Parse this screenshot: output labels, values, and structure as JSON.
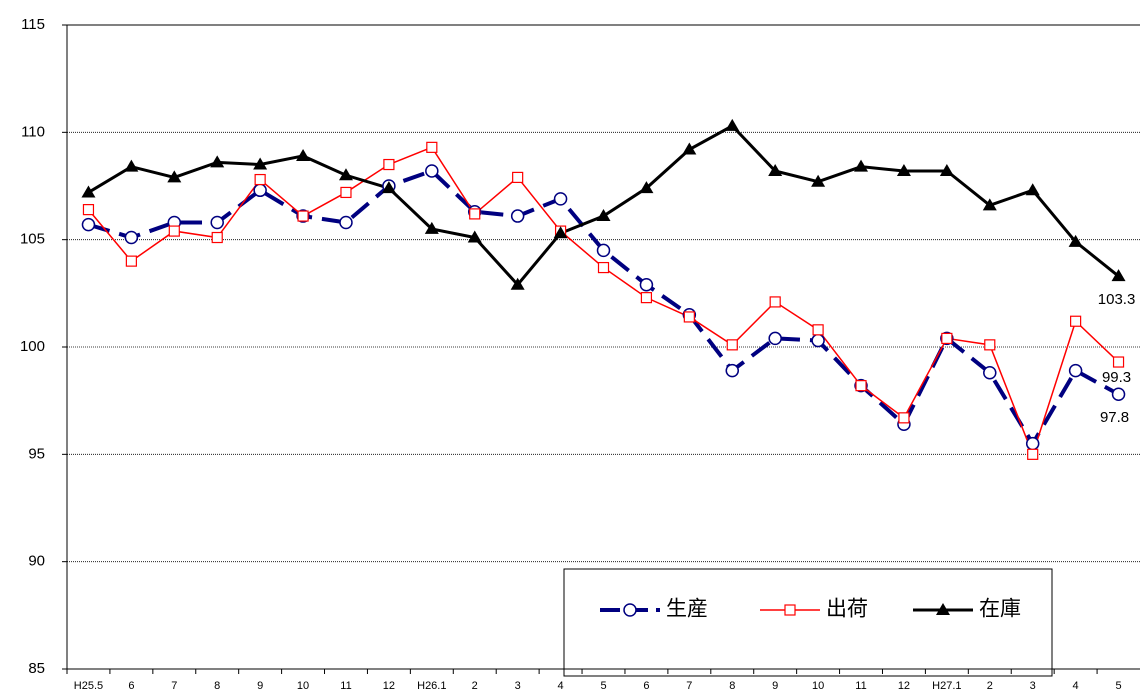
{
  "chart_data": {
    "type": "line",
    "categories": [
      "H25.5",
      "6",
      "7",
      "8",
      "9",
      "10",
      "11",
      "12",
      "H26.1",
      "2",
      "3",
      "4",
      "5",
      "6",
      "7",
      "8",
      "9",
      "10",
      "11",
      "12",
      "H27.1",
      "2",
      "3",
      "4",
      "5"
    ],
    "series": [
      {
        "name": "生産",
        "color": "#000080",
        "marker": "circle",
        "dashed": true,
        "values": [
          105.7,
          105.1,
          105.8,
          105.8,
          107.3,
          106.1,
          105.8,
          107.5,
          108.2,
          106.3,
          106.1,
          106.9,
          104.5,
          102.9,
          101.5,
          98.9,
          100.4,
          100.3,
          98.2,
          96.4,
          100.4,
          98.8,
          95.5,
          98.9,
          97.8
        ]
      },
      {
        "name": "出荷",
        "color": "#ff0000",
        "marker": "square",
        "dashed": false,
        "values": [
          106.4,
          104.0,
          105.4,
          105.1,
          107.8,
          106.1,
          107.2,
          108.5,
          109.3,
          106.2,
          107.9,
          105.4,
          103.7,
          102.3,
          101.4,
          100.1,
          102.1,
          100.8,
          98.2,
          96.7,
          100.4,
          100.1,
          95.0,
          101.2,
          99.3
        ]
      },
      {
        "name": "在庫",
        "color": "#000000",
        "marker": "triangle",
        "dashed": false,
        "values": [
          107.2,
          108.4,
          107.9,
          108.6,
          108.5,
          108.9,
          108.0,
          107.4,
          105.5,
          105.1,
          102.9,
          105.3,
          106.1,
          107.4,
          109.2,
          110.3,
          108.2,
          107.7,
          108.4,
          108.2,
          108.2,
          106.6,
          107.3,
          104.9,
          103.3
        ]
      }
    ],
    "ylim": [
      85,
      115
    ],
    "yticks": [
      85,
      90,
      95,
      100,
      105,
      110,
      115
    ],
    "grid": true
  }
}
